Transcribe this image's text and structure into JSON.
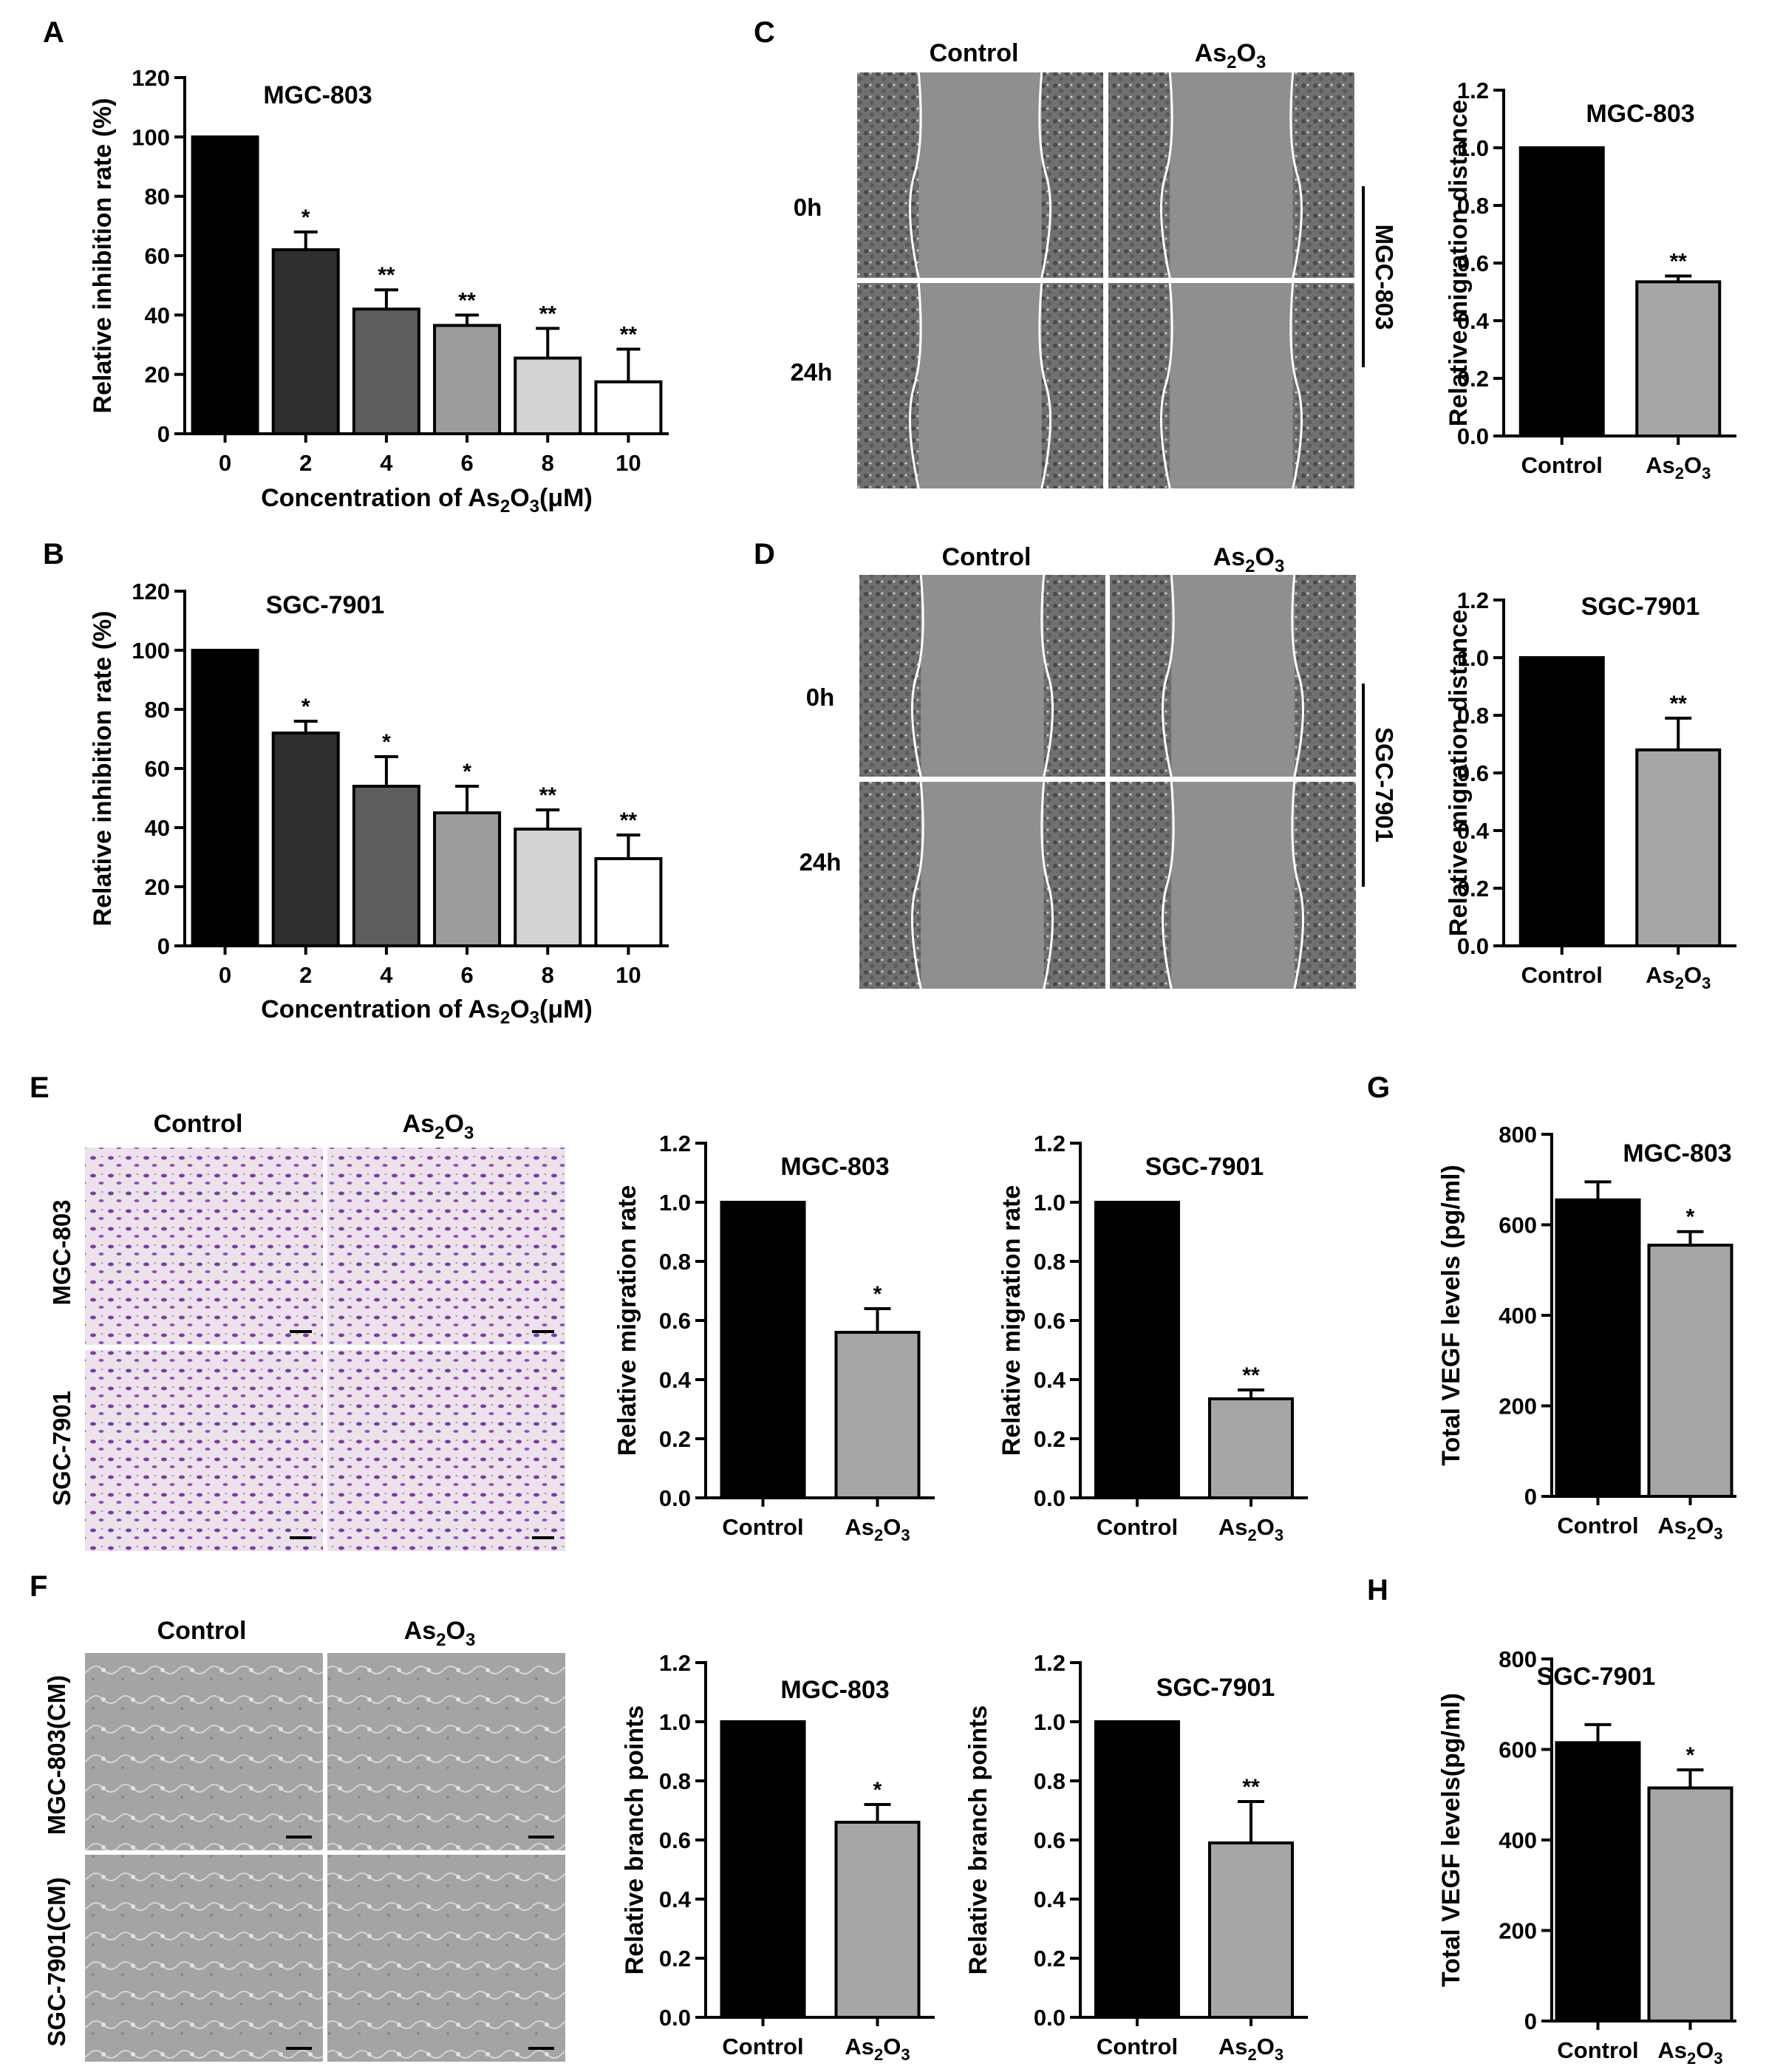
{
  "panels": {
    "A": "A",
    "B": "B",
    "C": "C",
    "D": "D",
    "E": "E",
    "F": "F",
    "G": "G",
    "H": "H"
  },
  "colors": {
    "bar_black": "#000000",
    "bar_2": "#2f2f2f",
    "bar_4": "#5e5e5e",
    "bar_6": "#9c9c9c",
    "bar_8": "#d3d3d3",
    "bar_10": "#ffffff",
    "bar_as2o3": "#a6a6a6",
    "scratch_gray": "#8a8a8a",
    "transwell_bg": "#e9dde6",
    "transwell_cell": "#7b3aa8",
    "tube_bg": "#a9a9a9"
  },
  "photos": {
    "C": {
      "columns": [
        "Control",
        "As2O3"
      ],
      "rows": [
        "0h",
        "24h"
      ],
      "side_label": "MGC-803"
    },
    "D": {
      "columns": [
        "Control",
        "As2O3"
      ],
      "rows": [
        "0h",
        "24h"
      ],
      "side_label": "SGC-7901"
    },
    "E": {
      "columns": [
        "Control",
        "As2O3"
      ],
      "rows": [
        "MGC-803",
        "SGC-7901"
      ]
    },
    "F": {
      "columns": [
        "Control",
        "As2O3"
      ],
      "rows": [
        "MGC-803(CM)",
        "SGC-7901(CM)"
      ]
    }
  },
  "chart_data": [
    {
      "id": "A",
      "type": "bar",
      "title": "MGC-803",
      "xlabel": "Concentration of As2O3(μM)",
      "ylabel": "Relative inhibition rate (%)",
      "categories": [
        "0",
        "2",
        "4",
        "6",
        "8",
        "10"
      ],
      "values": [
        100,
        62,
        42,
        36.5,
        25.5,
        17.5
      ],
      "errors": [
        0,
        6,
        6.5,
        3.5,
        10,
        11
      ],
      "significance": [
        "",
        "*",
        "**",
        "**",
        "**",
        "**"
      ],
      "ylim": [
        0,
        120
      ],
      "yticks": [
        0,
        20,
        40,
        60,
        80,
        100,
        120
      ],
      "bar_colors": [
        "#000000",
        "#2f2f2f",
        "#5e5e5e",
        "#9c9c9c",
        "#d3d3d3",
        "#ffffff"
      ],
      "grid": false
    },
    {
      "id": "B",
      "type": "bar",
      "title": "SGC-7901",
      "xlabel": "Concentration of As2O3(μM)",
      "ylabel": "Relative inhibition rate (%)",
      "categories": [
        "0",
        "2",
        "4",
        "6",
        "8",
        "10"
      ],
      "values": [
        100,
        72,
        54,
        45,
        39.5,
        29.5
      ],
      "errors": [
        0,
        4,
        10,
        9,
        6.5,
        8
      ],
      "significance": [
        "",
        "*",
        "*",
        "*",
        "**",
        "**"
      ],
      "ylim": [
        0,
        120
      ],
      "yticks": [
        0,
        20,
        40,
        60,
        80,
        100,
        120
      ],
      "bar_colors": [
        "#000000",
        "#2f2f2f",
        "#5e5e5e",
        "#9c9c9c",
        "#d3d3d3",
        "#ffffff"
      ],
      "grid": false
    },
    {
      "id": "C",
      "type": "bar",
      "title": "MGC-803",
      "xlabel": "",
      "ylabel": "Relative migration distance",
      "categories": [
        "Control",
        "As2O3"
      ],
      "values": [
        1.0,
        0.535
      ],
      "errors": [
        0,
        0.02
      ],
      "significance": [
        "",
        "**"
      ],
      "ylim": [
        0,
        1.2
      ],
      "yticks": [
        "0.0",
        "0.2",
        "0.4",
        "0.6",
        "0.8",
        "1.0",
        "1.2"
      ],
      "bar_colors": [
        "#000000",
        "#a6a6a6"
      ],
      "grid": false
    },
    {
      "id": "D",
      "type": "bar",
      "title": "SGC-7901",
      "xlabel": "",
      "ylabel": "Relative migration distance",
      "categories": [
        "Control",
        "As2O3"
      ],
      "values": [
        1.0,
        0.68
      ],
      "errors": [
        0,
        0.11
      ],
      "significance": [
        "",
        "**"
      ],
      "ylim": [
        0,
        1.2
      ],
      "yticks": [
        "0.0",
        "0.2",
        "0.4",
        "0.6",
        "0.8",
        "1.0",
        "1.2"
      ],
      "bar_colors": [
        "#000000",
        "#a6a6a6"
      ],
      "grid": false
    },
    {
      "id": "E1",
      "type": "bar",
      "title": "MGC-803",
      "xlabel": "",
      "ylabel": "Relative migration rate",
      "categories": [
        "Control",
        "As2O3"
      ],
      "values": [
        1.0,
        0.56
      ],
      "errors": [
        0,
        0.08
      ],
      "significance": [
        "",
        "*"
      ],
      "ylim": [
        0,
        1.2
      ],
      "yticks": [
        "0.0",
        "0.2",
        "0.4",
        "0.6",
        "0.8",
        "1.0",
        "1.2"
      ],
      "bar_colors": [
        "#000000",
        "#a6a6a6"
      ],
      "grid": false
    },
    {
      "id": "E2",
      "type": "bar",
      "title": "SGC-7901",
      "xlabel": "",
      "ylabel": "Relative  migration rate",
      "categories": [
        "Control",
        "As2O3"
      ],
      "values": [
        1.0,
        0.335
      ],
      "errors": [
        0,
        0.03
      ],
      "significance": [
        "",
        "**"
      ],
      "ylim": [
        0,
        1.2
      ],
      "yticks": [
        "0.0",
        "0.2",
        "0.4",
        "0.6",
        "0.8",
        "1.0",
        "1.2"
      ],
      "bar_colors": [
        "#000000",
        "#a6a6a6"
      ],
      "grid": false
    },
    {
      "id": "F1",
      "type": "bar",
      "title": "MGC-803",
      "xlabel": "",
      "ylabel": "Relative branch points",
      "categories": [
        "Control",
        "As2O3"
      ],
      "values": [
        1.0,
        0.66
      ],
      "errors": [
        0,
        0.06
      ],
      "significance": [
        "",
        "*"
      ],
      "ylim": [
        0,
        1.2
      ],
      "yticks": [
        "0.0",
        "0.2",
        "0.4",
        "0.6",
        "0.8",
        "1.0",
        "1.2"
      ],
      "bar_colors": [
        "#000000",
        "#a6a6a6"
      ],
      "grid": false
    },
    {
      "id": "F2",
      "type": "bar",
      "title": "SGC-7901",
      "xlabel": "",
      "ylabel": "Relative branch points",
      "categories": [
        "Control",
        "As2O3"
      ],
      "values": [
        1.0,
        0.59
      ],
      "errors": [
        0,
        0.14
      ],
      "significance": [
        "",
        "**"
      ],
      "ylim": [
        0,
        1.2
      ],
      "yticks": [
        "0.0",
        "0.2",
        "0.4",
        "0.6",
        "0.8",
        "1.0",
        "1.2"
      ],
      "bar_colors": [
        "#000000",
        "#a6a6a6"
      ],
      "grid": false
    },
    {
      "id": "G",
      "type": "bar",
      "title": "MGC-803",
      "xlabel": "",
      "ylabel": "Total VEGF levels (pg/ml)",
      "categories": [
        "Control",
        "As2O3"
      ],
      "values": [
        655,
        555
      ],
      "errors": [
        40,
        30
      ],
      "significance": [
        "",
        "*"
      ],
      "ylim": [
        0,
        800
      ],
      "yticks": [
        "0",
        "200",
        "400",
        "600",
        "800"
      ],
      "bar_colors": [
        "#000000",
        "#a6a6a6"
      ],
      "grid": false
    },
    {
      "id": "H",
      "type": "bar",
      "title": "SGC-7901",
      "xlabel": "",
      "ylabel": "Total VEGF levels(pg/ml)",
      "categories": [
        "Control",
        "As2O3"
      ],
      "values": [
        615,
        515
      ],
      "errors": [
        40,
        40
      ],
      "significance": [
        "",
        "*"
      ],
      "ylim": [
        0,
        800
      ],
      "yticks": [
        "0",
        "200",
        "400",
        "600",
        "800"
      ],
      "bar_colors": [
        "#000000",
        "#a6a6a6"
      ],
      "grid": false
    }
  ]
}
